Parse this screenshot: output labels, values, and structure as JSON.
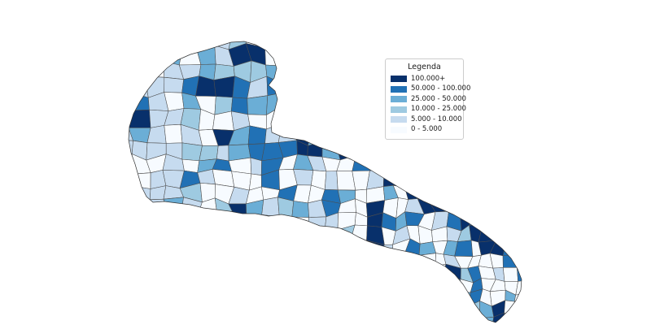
{
  "legend": {
    "title": "Legenda",
    "entries": [
      {
        "label": "100.000+",
        "color": "#08306b"
      },
      {
        "label": "50.000 - 100.000",
        "color": "#2171b5"
      },
      {
        "label": "25.000 - 50.000",
        "color": "#6baed6"
      },
      {
        "label": "10.000 - 25.000",
        "color": "#9ecae1"
      },
      {
        "label": "5.000 - 10.000",
        "color": "#c6dbef"
      },
      {
        "label": "0 - 5.000",
        "color": "#f7fbff"
      }
    ]
  },
  "map": {
    "boundary_color": "#4d4d4d",
    "outline_color": "#333333",
    "sea_color": "#ffffff"
  }
}
